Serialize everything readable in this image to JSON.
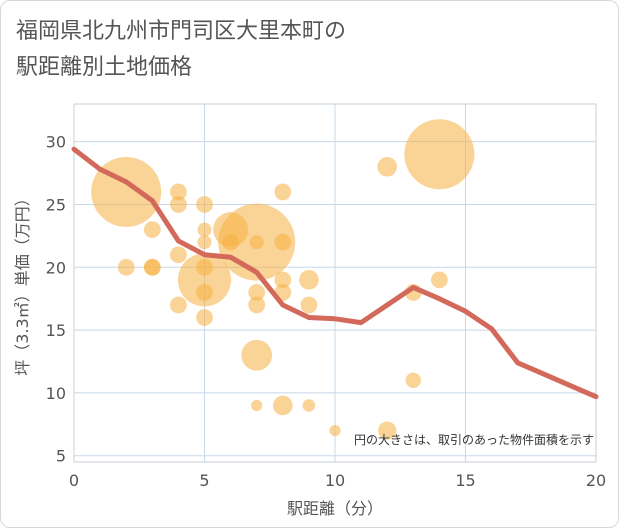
{
  "title_line1": "福岡県北九州市門司区大里本町の",
  "title_line2": "駅距離別土地価格",
  "chart_data": {
    "type": "scatter",
    "xlabel": "駅距離（分）",
    "ylabel": "坪（3.3㎡）単価（万円）",
    "xlim": [
      0,
      20
    ],
    "ylim": [
      4.5,
      33
    ],
    "xticks": [
      0,
      5,
      10,
      15,
      20
    ],
    "yticks": [
      5,
      10,
      15,
      20,
      25,
      30
    ],
    "note": "円の大きさは、取引のあった物件面積を示す",
    "colors": {
      "bubble": "#f5b041",
      "line": "#d2695a",
      "grid": "#c8d8e8"
    },
    "bubbles": [
      {
        "x": 2,
        "y": 26,
        "size": 5
      },
      {
        "x": 2,
        "y": 20,
        "size": 1.2
      },
      {
        "x": 3,
        "y": 23,
        "size": 1.2
      },
      {
        "x": 3,
        "y": 20,
        "size": 1.2
      },
      {
        "x": 3,
        "y": 20,
        "size": 1.2
      },
      {
        "x": 4,
        "y": 26,
        "size": 1.2
      },
      {
        "x": 4,
        "y": 25,
        "size": 1.2
      },
      {
        "x": 4,
        "y": 21,
        "size": 1.2
      },
      {
        "x": 4,
        "y": 17,
        "size": 1.2
      },
      {
        "x": 5,
        "y": 25,
        "size": 1.2
      },
      {
        "x": 5,
        "y": 23,
        "size": 1
      },
      {
        "x": 5,
        "y": 22,
        "size": 1
      },
      {
        "x": 5,
        "y": 20,
        "size": 1.2
      },
      {
        "x": 5,
        "y": 19,
        "size": 3.8
      },
      {
        "x": 5,
        "y": 18,
        "size": 1.2
      },
      {
        "x": 5,
        "y": 16,
        "size": 1.2
      },
      {
        "x": 6,
        "y": 23,
        "size": 2.5
      },
      {
        "x": 6,
        "y": 22,
        "size": 1.2
      },
      {
        "x": 7,
        "y": 22,
        "size": 5.5
      },
      {
        "x": 7,
        "y": 22,
        "size": 1
      },
      {
        "x": 7,
        "y": 18,
        "size": 1.2
      },
      {
        "x": 7,
        "y": 17,
        "size": 1.2
      },
      {
        "x": 7,
        "y": 13,
        "size": 2.2
      },
      {
        "x": 7,
        "y": 9,
        "size": 0.8
      },
      {
        "x": 8,
        "y": 26,
        "size": 1.2
      },
      {
        "x": 8,
        "y": 22,
        "size": 1.2
      },
      {
        "x": 8,
        "y": 19,
        "size": 1.2
      },
      {
        "x": 8,
        "y": 18,
        "size": 1.2
      },
      {
        "x": 8,
        "y": 9,
        "size": 1.4
      },
      {
        "x": 9,
        "y": 19,
        "size": 1.4
      },
      {
        "x": 9,
        "y": 17,
        "size": 1.2
      },
      {
        "x": 9,
        "y": 9,
        "size": 0.9
      },
      {
        "x": 10,
        "y": 7,
        "size": 0.8
      },
      {
        "x": 12,
        "y": 28,
        "size": 1.4
      },
      {
        "x": 12,
        "y": 7,
        "size": 1.3
      },
      {
        "x": 13,
        "y": 18,
        "size": 1.2
      },
      {
        "x": 13,
        "y": 11,
        "size": 1.1
      },
      {
        "x": 14,
        "y": 29,
        "size": 5
      },
      {
        "x": 14,
        "y": 19,
        "size": 1.2
      }
    ],
    "line": {
      "x": [
        0,
        1,
        2,
        3,
        4,
        5,
        6,
        7,
        8,
        9,
        10,
        11,
        12,
        13,
        14,
        15,
        16,
        17,
        18,
        19,
        20
      ],
      "y": [
        29.4,
        27.8,
        26.8,
        25.3,
        22.1,
        21.0,
        20.8,
        19.6,
        17.0,
        16.0,
        15.9,
        15.6,
        17.0,
        18.4,
        17.5,
        16.5,
        15.1,
        12.4,
        11.5,
        10.6,
        9.7
      ]
    }
  }
}
